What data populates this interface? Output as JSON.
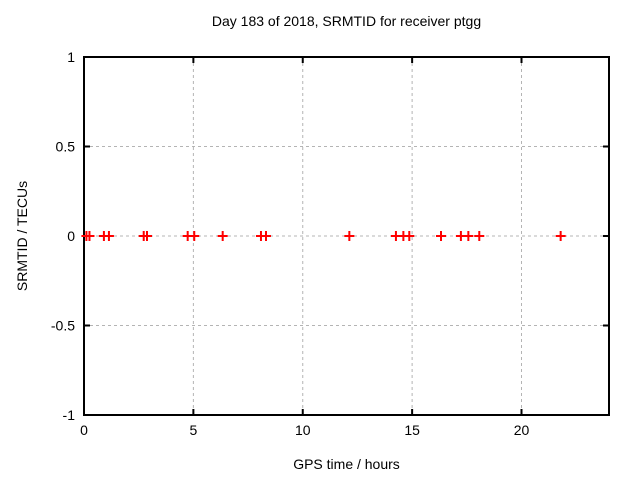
{
  "chart_data": {
    "type": "scatter",
    "title": "Day 183 of 2018, SRMTID for receiver ptgg",
    "xlabel": "GPS time / hours",
    "ylabel": "SRMTID / TECUs",
    "xlim": [
      0,
      24
    ],
    "ylim": [
      -1,
      1
    ],
    "x_ticks": [
      0,
      5,
      10,
      15,
      20
    ],
    "x_tick_labels": [
      "0",
      "5",
      "10",
      "15",
      "20"
    ],
    "y_ticks": [
      -1,
      -0.5,
      0,
      0.5,
      1
    ],
    "y_tick_labels": [
      "-1",
      "-0.5",
      "0",
      "0.5",
      "1"
    ],
    "grid": true,
    "grid_style": "dashed",
    "legend_position": "none",
    "marker": "plus",
    "marker_color": "#ff0000",
    "grid_color": "#b4b4b4",
    "border_color": "#000000",
    "background_color": "#ffffff",
    "points": [
      {
        "x": 0.11,
        "y": 0
      },
      {
        "x": 0.25,
        "y": 0
      },
      {
        "x": 0.91,
        "y": 0
      },
      {
        "x": 1.14,
        "y": 0
      },
      {
        "x": 2.73,
        "y": 0
      },
      {
        "x": 2.88,
        "y": 0
      },
      {
        "x": 4.74,
        "y": 0
      },
      {
        "x": 5.04,
        "y": 0
      },
      {
        "x": 6.34,
        "y": 0
      },
      {
        "x": 8.09,
        "y": 0
      },
      {
        "x": 8.32,
        "y": 0
      },
      {
        "x": 12.13,
        "y": 0
      },
      {
        "x": 14.26,
        "y": 0
      },
      {
        "x": 14.6,
        "y": 0
      },
      {
        "x": 14.87,
        "y": 0
      },
      {
        "x": 16.32,
        "y": 0
      },
      {
        "x": 17.23,
        "y": 0
      },
      {
        "x": 17.57,
        "y": 0
      },
      {
        "x": 18.07,
        "y": 0
      },
      {
        "x": 21.79,
        "y": 0
      }
    ]
  }
}
